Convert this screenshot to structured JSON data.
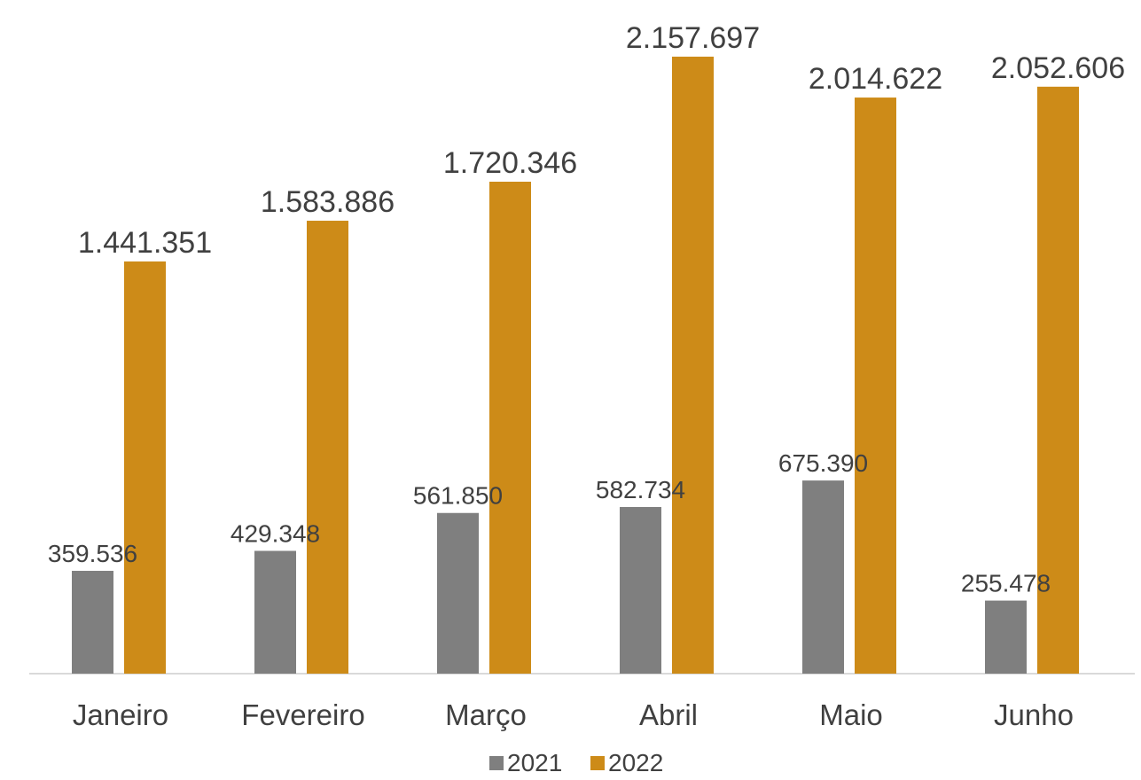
{
  "chart_data": {
    "type": "bar",
    "categories": [
      "Janeiro",
      "Fevereiro",
      "Março",
      "Abril",
      "Maio",
      "Junho"
    ],
    "series": [
      {
        "name": "2021",
        "color": "#7f7f7f",
        "values": [
          359536,
          429348,
          561850,
          582734,
          675390,
          255478
        ],
        "labels": [
          "359.536",
          "429.348",
          "561.850",
          "582.734",
          "675.390",
          "255.478"
        ]
      },
      {
        "name": "2022",
        "color": "#cd8b18",
        "values": [
          1441351,
          1583886,
          1720346,
          2157697,
          2014622,
          2052606
        ],
        "labels": [
          "1.441.351",
          "1.583.886",
          "1.720.346",
          "2.157.697",
          "2.014.622",
          "2.052.606"
        ]
      }
    ],
    "ylim": [
      0,
      2300000
    ],
    "grid": false,
    "legend_position": "bottom",
    "title": "",
    "xlabel": "",
    "ylabel": ""
  }
}
